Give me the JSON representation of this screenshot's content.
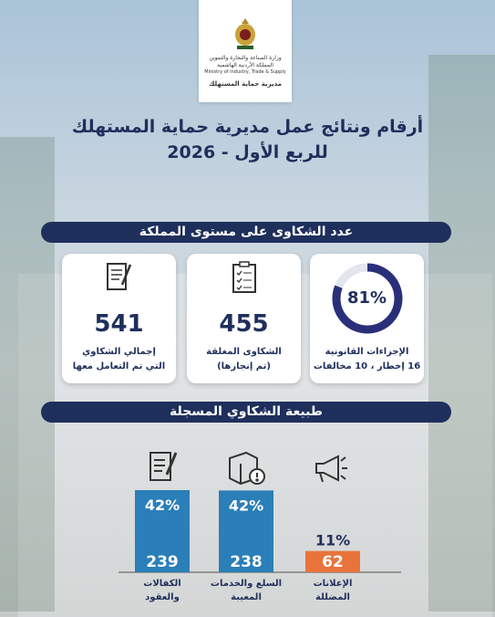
{
  "logo": {
    "ministry_ar": "وزارة الصناعة والتجارة والتموين",
    "kingdom_ar": "المملكة الأردنية الهاشمية",
    "ministry_en": "Ministry of Industry, Trade & Supply",
    "directorate": "مديرية حماية المستهلك"
  },
  "title": {
    "line1": "أرقام ونتائج عمل مديرية حماية المستهلك",
    "line2": "للربع الأول - 2026"
  },
  "kingdom_section": {
    "heading": "عدد الشكاوى على مستوى المملكة",
    "cards": [
      {
        "value": 541,
        "label_line1": "إجمالي الشكاوي",
        "label_line2": "التي تم التعامل معها"
      },
      {
        "value": 455,
        "label_line1": "الشكاوى المغلقة",
        "label_line2": "(تم إنجازها)"
      },
      {
        "percent": 81,
        "percent_label": "81%",
        "label_line1": "الإجراءات القانونية",
        "label_line2": "16 إخطار ، 10 مخالفات"
      }
    ]
  },
  "types_section": {
    "heading": "طبيعة الشكاوي المسجلة",
    "categories": [
      [
        "الكفالات",
        "والعقود"
      ],
      [
        "السلع والخدمات",
        "المعيبة"
      ],
      [
        "الإعلانات",
        "المضللة"
      ]
    ],
    "values": [
      239,
      238,
      62
    ],
    "shares": [
      42,
      42,
      11
    ],
    "share_labels": [
      "42%",
      "42%",
      "11%"
    ],
    "colors": [
      "#2a7fb8",
      "#2a7fb8",
      "#e8743b"
    ]
  }
}
